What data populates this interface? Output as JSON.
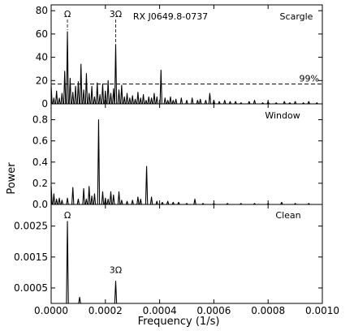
{
  "figure": {
    "ylabel": "Power",
    "xlabel": "Frequency (1/s)",
    "xlim": [
      0.0,
      0.001
    ],
    "xticks": [
      0.0,
      0.0002,
      0.0004,
      0.0006,
      0.0008,
      0.001
    ],
    "xtick_labels": [
      "0.0000",
      "0.0002",
      "0.0004",
      "0.0006",
      "0.0008",
      "0.0010"
    ]
  },
  "chart_data": [
    {
      "type": "line",
      "panel_label": "Scargle",
      "title": "RX J0649.8-0737",
      "ylim": [
        0,
        85
      ],
      "yticks": [
        0,
        20,
        40,
        60,
        80
      ],
      "ytick_labels": [
        "0",
        "20",
        "40",
        "60",
        "80"
      ],
      "peaks": [
        {
          "x": 0.0,
          "y": 16
        },
        {
          "x": 1e-05,
          "y": 5
        },
        {
          "x": 2e-05,
          "y": 11
        },
        {
          "x": 3e-05,
          "y": 5
        },
        {
          "x": 4e-05,
          "y": 9
        },
        {
          "x": 5e-05,
          "y": 28
        },
        {
          "x": 6e-05,
          "y": 62
        },
        {
          "x": 7e-05,
          "y": 22
        },
        {
          "x": 8e-05,
          "y": 10
        },
        {
          "x": 9e-05,
          "y": 15
        },
        {
          "x": 0.0001,
          "y": 19
        },
        {
          "x": 0.00011,
          "y": 34
        },
        {
          "x": 0.00012,
          "y": 12
        },
        {
          "x": 0.00013,
          "y": 26
        },
        {
          "x": 0.00014,
          "y": 9
        },
        {
          "x": 0.00015,
          "y": 15
        },
        {
          "x": 0.00016,
          "y": 6
        },
        {
          "x": 0.00017,
          "y": 18
        },
        {
          "x": 0.00018,
          "y": 8
        },
        {
          "x": 0.00019,
          "y": 17
        },
        {
          "x": 0.0002,
          "y": 11
        },
        {
          "x": 0.00021,
          "y": 20
        },
        {
          "x": 0.00022,
          "y": 9
        },
        {
          "x": 0.00023,
          "y": 13
        },
        {
          "x": 0.000238,
          "y": 51
        },
        {
          "x": 0.00025,
          "y": 12
        },
        {
          "x": 0.00026,
          "y": 16
        },
        {
          "x": 0.00027,
          "y": 6
        },
        {
          "x": 0.00028,
          "y": 9
        },
        {
          "x": 0.00029,
          "y": 5
        },
        {
          "x": 0.0003,
          "y": 7
        },
        {
          "x": 0.00031,
          "y": 4
        },
        {
          "x": 0.00032,
          "y": 10
        },
        {
          "x": 0.00033,
          "y": 5
        },
        {
          "x": 0.00034,
          "y": 8
        },
        {
          "x": 0.00035,
          "y": 3
        },
        {
          "x": 0.00036,
          "y": 6
        },
        {
          "x": 0.00037,
          "y": 5
        },
        {
          "x": 0.00038,
          "y": 9
        },
        {
          "x": 0.00039,
          "y": 6
        },
        {
          "x": 0.000405,
          "y": 29
        },
        {
          "x": 0.00042,
          "y": 5
        },
        {
          "x": 0.00043,
          "y": 3
        },
        {
          "x": 0.00044,
          "y": 6
        },
        {
          "x": 0.00045,
          "y": 3
        },
        {
          "x": 0.00046,
          "y": 4
        },
        {
          "x": 0.00048,
          "y": 5
        },
        {
          "x": 0.0005,
          "y": 3
        },
        {
          "x": 0.00052,
          "y": 5
        },
        {
          "x": 0.00054,
          "y": 3
        },
        {
          "x": 0.00055,
          "y": 4
        },
        {
          "x": 0.00057,
          "y": 3
        },
        {
          "x": 0.000585,
          "y": 9
        },
        {
          "x": 0.0006,
          "y": 3
        },
        {
          "x": 0.00062,
          "y": 2
        },
        {
          "x": 0.00064,
          "y": 3
        },
        {
          "x": 0.00066,
          "y": 2
        },
        {
          "x": 0.00068,
          "y": 2
        },
        {
          "x": 0.0007,
          "y": 1
        },
        {
          "x": 0.00073,
          "y": 2
        },
        {
          "x": 0.00075,
          "y": 3
        },
        {
          "x": 0.00078,
          "y": 1
        },
        {
          "x": 0.0008,
          "y": 2
        },
        {
          "x": 0.00083,
          "y": 1
        },
        {
          "x": 0.00086,
          "y": 2
        },
        {
          "x": 0.00088,
          "y": 1
        },
        {
          "x": 0.0009,
          "y": 2
        },
        {
          "x": 0.00093,
          "y": 1
        },
        {
          "x": 0.00095,
          "y": 2
        },
        {
          "x": 0.00098,
          "y": 1
        }
      ],
      "threshold": {
        "y": 17,
        "label": "99%"
      },
      "annotations": [
        {
          "text": "Ω",
          "x": 6e-05
        },
        {
          "text": "3Ω",
          "x": 0.000238
        }
      ]
    },
    {
      "type": "line",
      "panel_label": "Window",
      "ylim": [
        0,
        0.95
      ],
      "yticks": [
        0.0,
        0.2,
        0.4,
        0.6,
        0.8
      ],
      "ytick_labels": [
        "0.0",
        "0.2",
        "0.4",
        "0.6",
        "0.8"
      ],
      "peaks": [
        {
          "x": 0.0,
          "y": 0.18
        },
        {
          "x": 1e-05,
          "y": 0.1
        },
        {
          "x": 2e-05,
          "y": 0.05
        },
        {
          "x": 3e-05,
          "y": 0.06
        },
        {
          "x": 4e-05,
          "y": 0.04
        },
        {
          "x": 6e-05,
          "y": 0.06
        },
        {
          "x": 8e-05,
          "y": 0.16
        },
        {
          "x": 0.0001,
          "y": 0.05
        },
        {
          "x": 0.00012,
          "y": 0.15
        },
        {
          "x": 0.00013,
          "y": 0.05
        },
        {
          "x": 0.00014,
          "y": 0.17
        },
        {
          "x": 0.00015,
          "y": 0.08
        },
        {
          "x": 0.00016,
          "y": 0.1
        },
        {
          "x": 0.000175,
          "y": 0.8
        },
        {
          "x": 0.00019,
          "y": 0.12
        },
        {
          "x": 0.0002,
          "y": 0.06
        },
        {
          "x": 0.00021,
          "y": 0.05
        },
        {
          "x": 0.00022,
          "y": 0.12
        },
        {
          "x": 0.00023,
          "y": 0.09
        },
        {
          "x": 0.00025,
          "y": 0.12
        },
        {
          "x": 0.00026,
          "y": 0.04
        },
        {
          "x": 0.00028,
          "y": 0.03
        },
        {
          "x": 0.0003,
          "y": 0.04
        },
        {
          "x": 0.00032,
          "y": 0.07
        },
        {
          "x": 0.00033,
          "y": 0.05
        },
        {
          "x": 0.000352,
          "y": 0.36
        },
        {
          "x": 0.00037,
          "y": 0.07
        },
        {
          "x": 0.00039,
          "y": 0.03
        },
        {
          "x": 0.00041,
          "y": 0.02
        },
        {
          "x": 0.00043,
          "y": 0.03
        },
        {
          "x": 0.00045,
          "y": 0.02
        },
        {
          "x": 0.00047,
          "y": 0.02
        },
        {
          "x": 0.0005,
          "y": 0.01
        },
        {
          "x": 0.00053,
          "y": 0.05
        },
        {
          "x": 0.00056,
          "y": 0.01
        },
        {
          "x": 0.0006,
          "y": 0.01
        },
        {
          "x": 0.00065,
          "y": 0.01
        },
        {
          "x": 0.0007,
          "y": 0.01
        },
        {
          "x": 0.00075,
          "y": 0.01
        },
        {
          "x": 0.0008,
          "y": 0.01
        },
        {
          "x": 0.00085,
          "y": 0.02
        },
        {
          "x": 0.0009,
          "y": 0.01
        },
        {
          "x": 0.00095,
          "y": 0.01
        }
      ]
    },
    {
      "type": "line",
      "panel_label": "Clean",
      "ylim": [
        0,
        0.0032
      ],
      "yticks": [
        0.0005,
        0.0015,
        0.0025
      ],
      "ytick_labels": [
        "0.0005",
        "0.0015",
        "0.0025"
      ],
      "peaks": [
        {
          "x": 6e-05,
          "y": 0.00265
        },
        {
          "x": 0.000105,
          "y": 0.0002
        },
        {
          "x": 0.000238,
          "y": 0.00072
        }
      ],
      "annotations": [
        {
          "text": "Ω",
          "x": 6e-05
        },
        {
          "text": "3Ω",
          "x": 0.000238
        }
      ]
    }
  ]
}
